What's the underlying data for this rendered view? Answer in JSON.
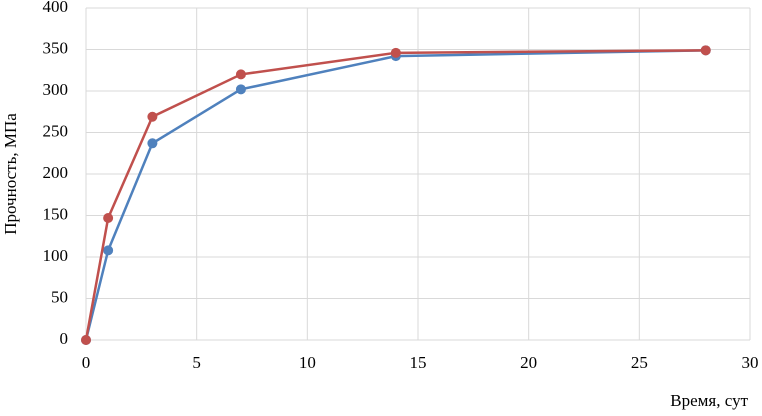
{
  "chart_data": {
    "type": "line",
    "x_label": "Время, сут",
    "y_label": "Прочность, МПа",
    "x": [
      0,
      1,
      3,
      7,
      14,
      28
    ],
    "series": [
      {
        "color": "#4f81bd",
        "values": [
          0,
          108,
          237,
          302,
          342,
          349
        ]
      },
      {
        "color": "#c0504d",
        "values": [
          0,
          147,
          269,
          320,
          346,
          349
        ]
      }
    ],
    "xlim": [
      0,
      30
    ],
    "xticks": [
      0,
      5,
      10,
      15,
      20,
      25,
      30
    ],
    "ylim": [
      0,
      400
    ],
    "yticks": [
      0,
      50,
      100,
      150,
      200,
      250,
      300,
      350,
      400
    ],
    "grid": true
  }
}
